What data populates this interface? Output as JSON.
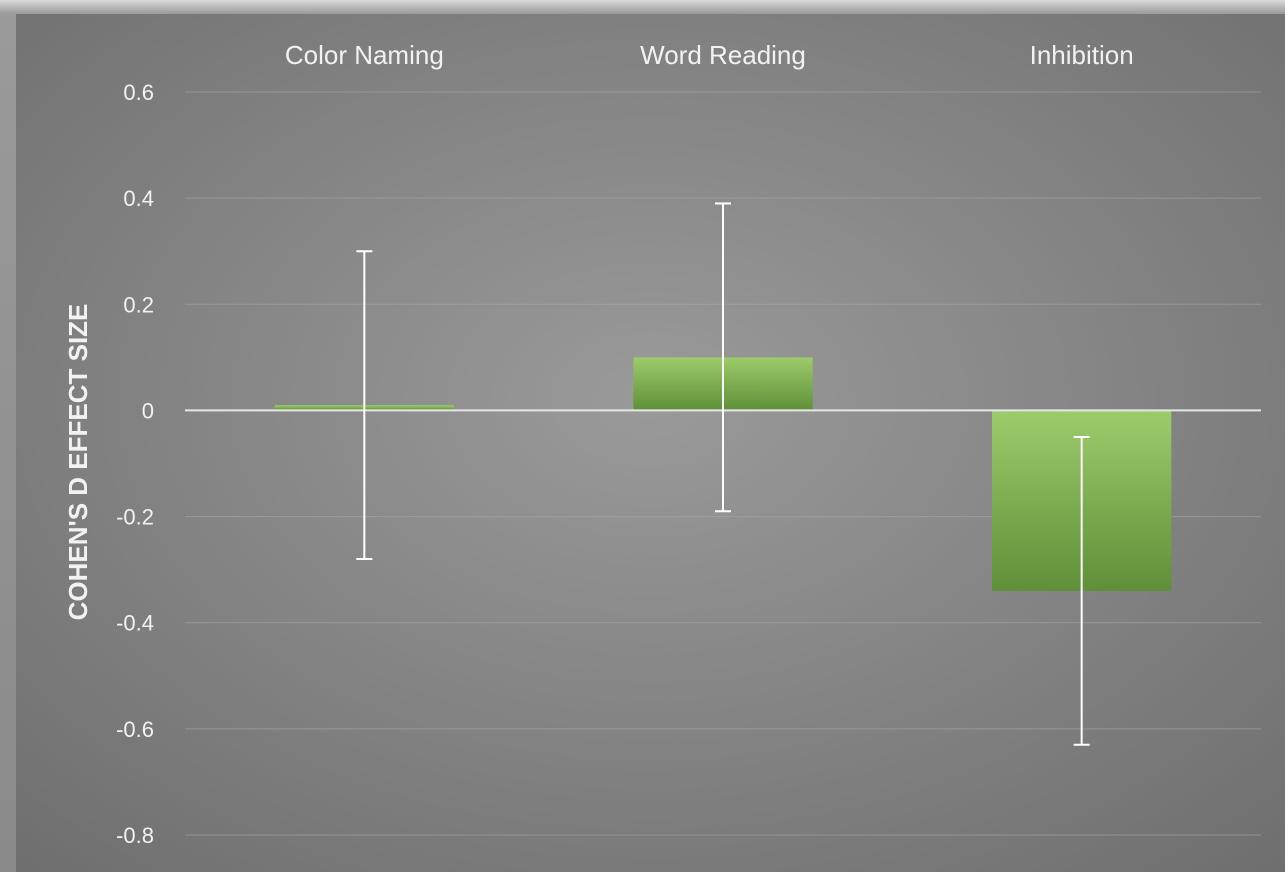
{
  "chart_data": {
    "type": "bar",
    "title": "",
    "xlabel": "",
    "ylabel": "COHEN'S D EFFECT SIZE",
    "categories": [
      "Color Naming",
      "Word Reading",
      "Inhibition"
    ],
    "values": [
      0.01,
      0.1,
      -0.34
    ],
    "error_low": [
      -0.28,
      -0.19,
      -0.63
    ],
    "error_high": [
      0.3,
      0.39,
      -0.05
    ],
    "ylim": [
      -0.8,
      0.6
    ],
    "yticks": [
      0.6,
      0.4,
      0.2,
      0,
      -0.2,
      -0.4,
      -0.6,
      -0.8
    ],
    "ytick_labels": [
      "0.6",
      "0.4",
      "0.2",
      "0",
      "-0.2",
      "-0.4",
      "-0.6",
      "-0.8"
    ],
    "category_axis_position": "top",
    "grid": true,
    "legend": "none",
    "colors": {
      "bar_top": "#9ccc6a",
      "bar_bottom": "#5f8f39",
      "background_center": "#9a9a9a",
      "background_edge": "#6e6e6e",
      "text": "#f2f2f2",
      "gridline": "#a8a8a8",
      "zero_line": "#e6e6e6",
      "error_bar": "#ffffff"
    }
  }
}
